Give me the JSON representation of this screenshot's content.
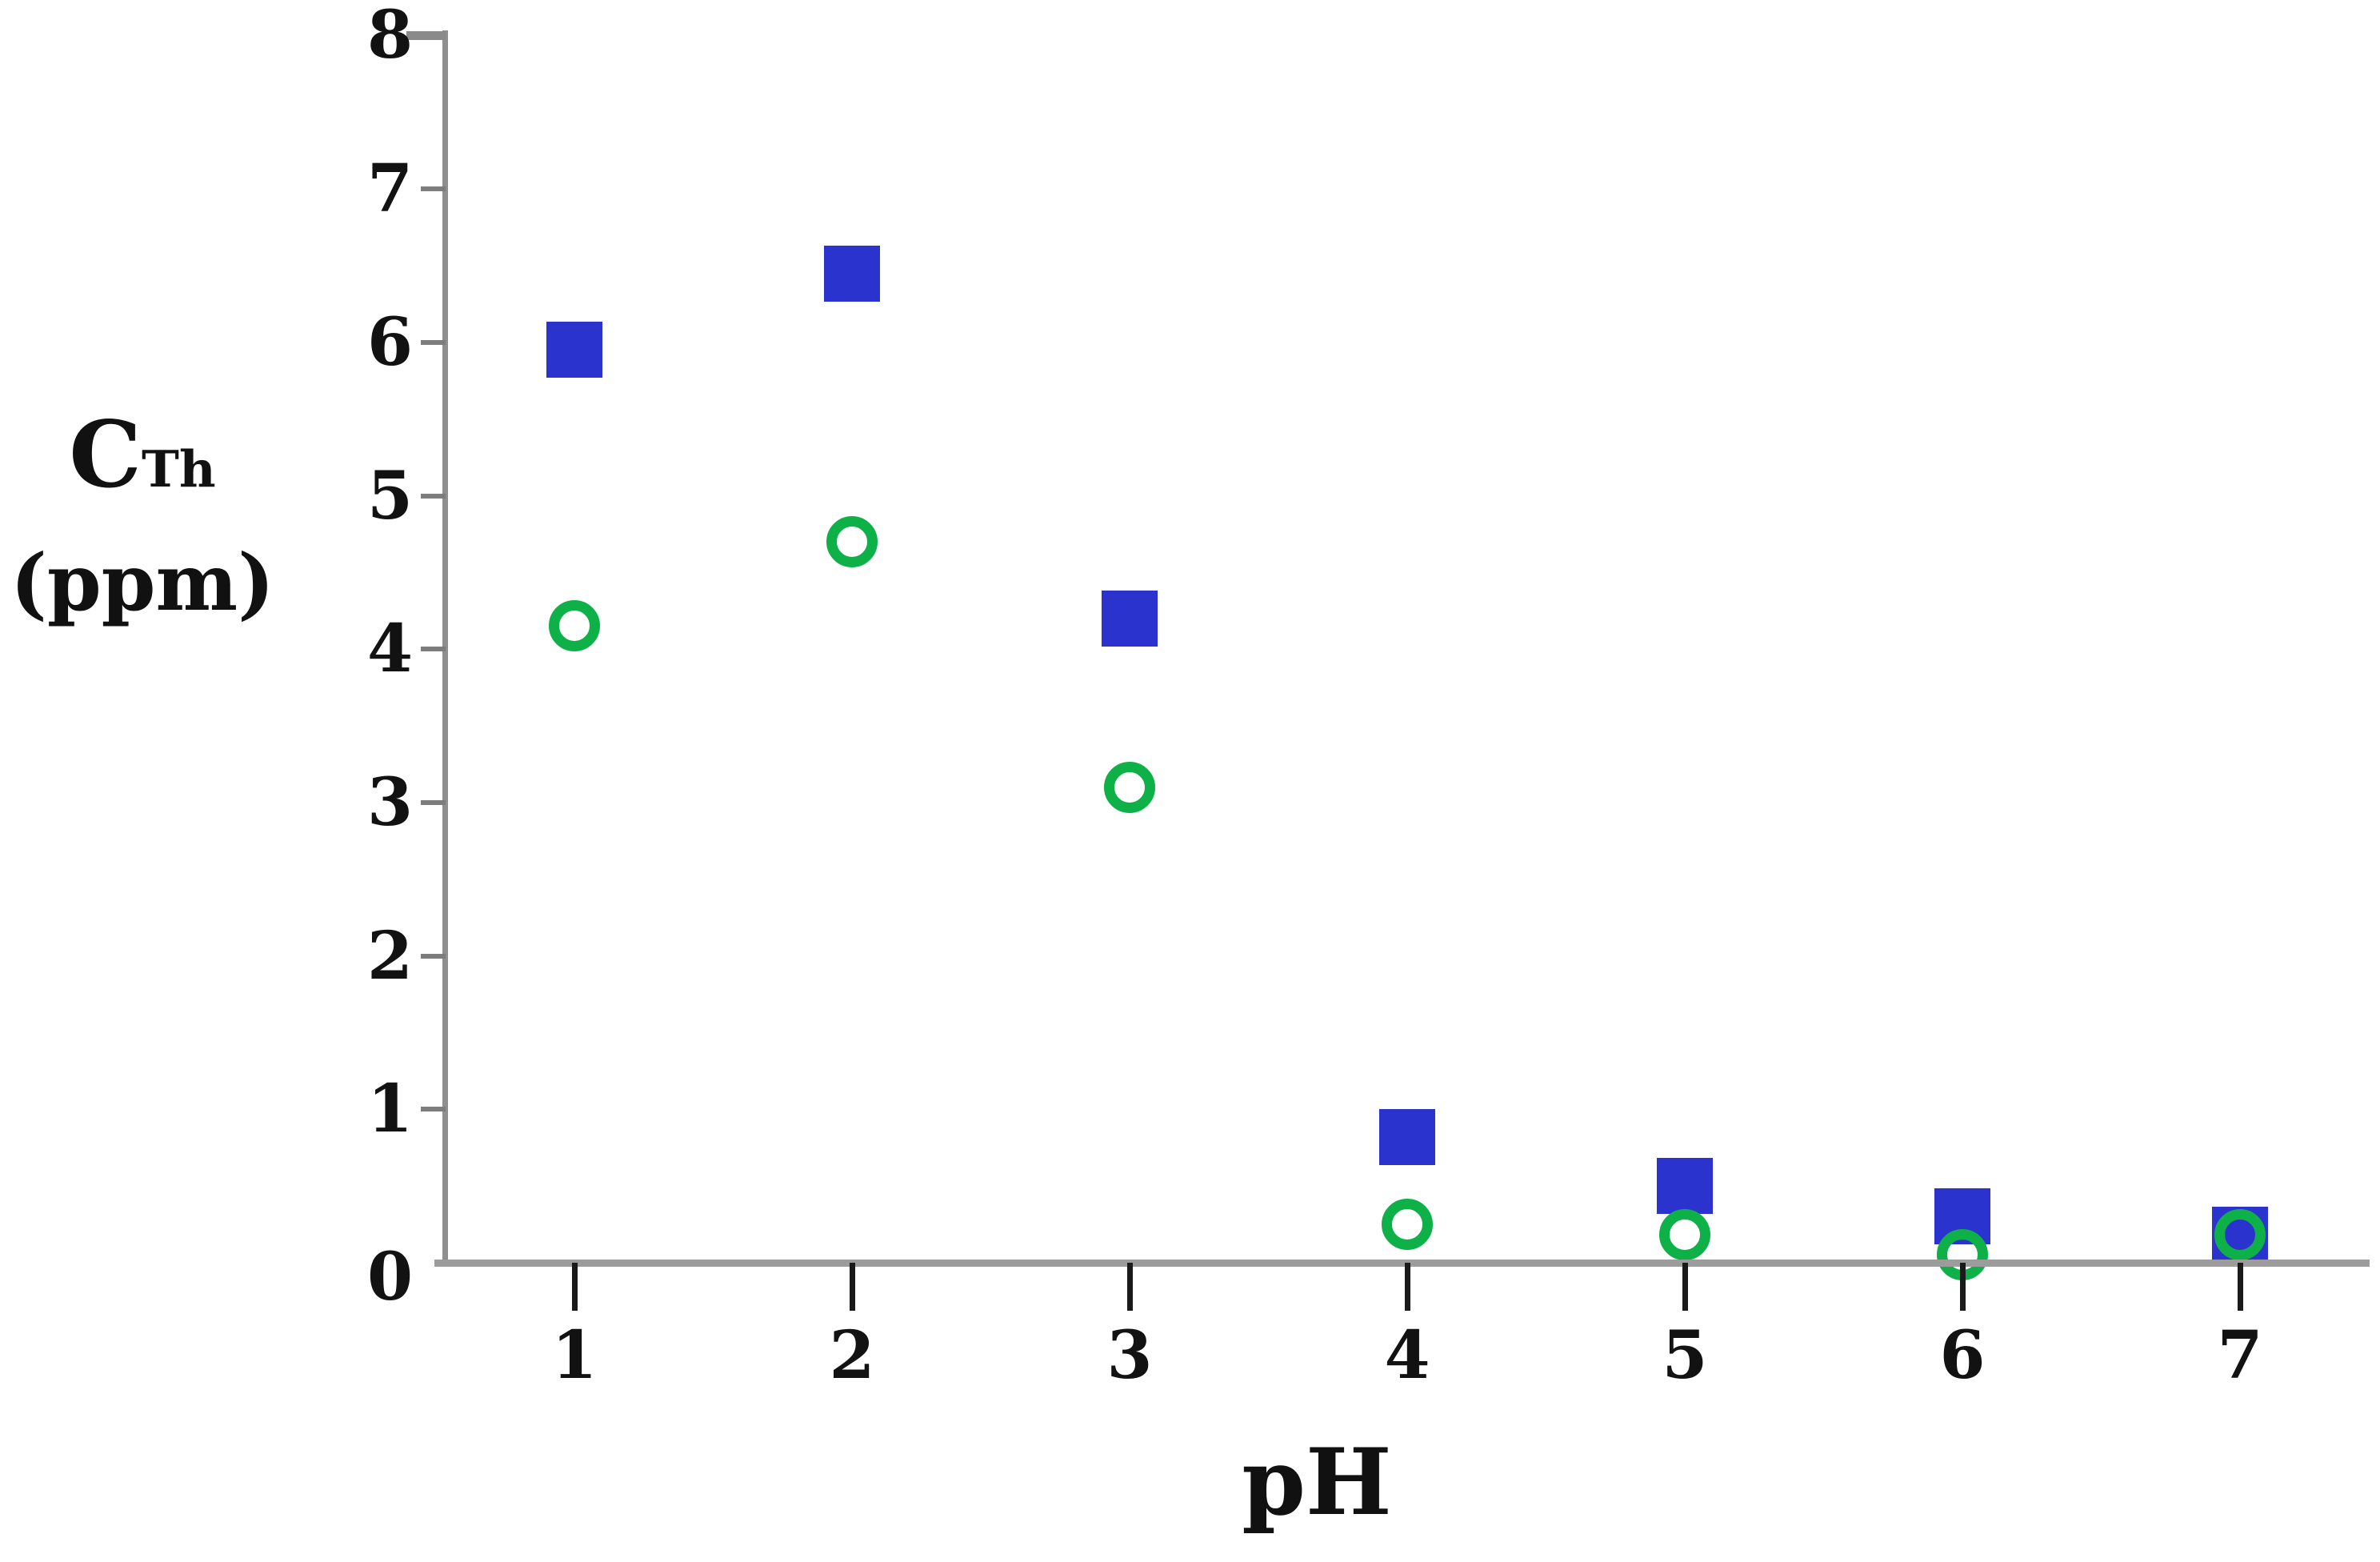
{
  "labels": {
    "y_main": "C",
    "y_sub": "Th",
    "y_unit": "(ppm)",
    "x": "pH"
  },
  "colors": {
    "square_series": "#2B33CE",
    "circle_series": "#0EB148",
    "x_axis": "#9C9C9C",
    "y_axis": "#8F8F8F",
    "x_tick": "#1A1A1A",
    "text": "#121212",
    "background": "#FFFFFF"
  },
  "chart_data": {
    "type": "scatter",
    "title": "",
    "xlabel": "pH",
    "ylabel": "C_Th (ppm)",
    "xlim": [
      0.5,
      7.5
    ],
    "ylim": [
      0,
      8
    ],
    "grid": false,
    "legend": false,
    "x_ticks": [
      1,
      2,
      3,
      4,
      5,
      6,
      7
    ],
    "x_tick_labels": [
      "1",
      "2",
      "3",
      "4",
      "5",
      "6",
      "7"
    ],
    "y_ticks": [
      0,
      1,
      2,
      3,
      4,
      5,
      6,
      7,
      8
    ],
    "y_tick_labels": [
      "0",
      "1",
      "2",
      "3",
      "4",
      "5",
      "6",
      "7",
      "8"
    ],
    "x": [
      1,
      2,
      3,
      4,
      5,
      6,
      7
    ],
    "series": [
      {
        "name": "blue-filled-square-series",
        "marker": "square-filled",
        "color": "#2B33CE",
        "values": [
          5.95,
          6.45,
          4.2,
          0.82,
          0.5,
          0.3,
          0.18
        ]
      },
      {
        "name": "green-open-circle-series",
        "marker": "circle-open",
        "color": "#0EB148",
        "values": [
          4.15,
          4.7,
          3.1,
          0.25,
          0.18,
          0.05,
          0.18
        ]
      }
    ]
  }
}
